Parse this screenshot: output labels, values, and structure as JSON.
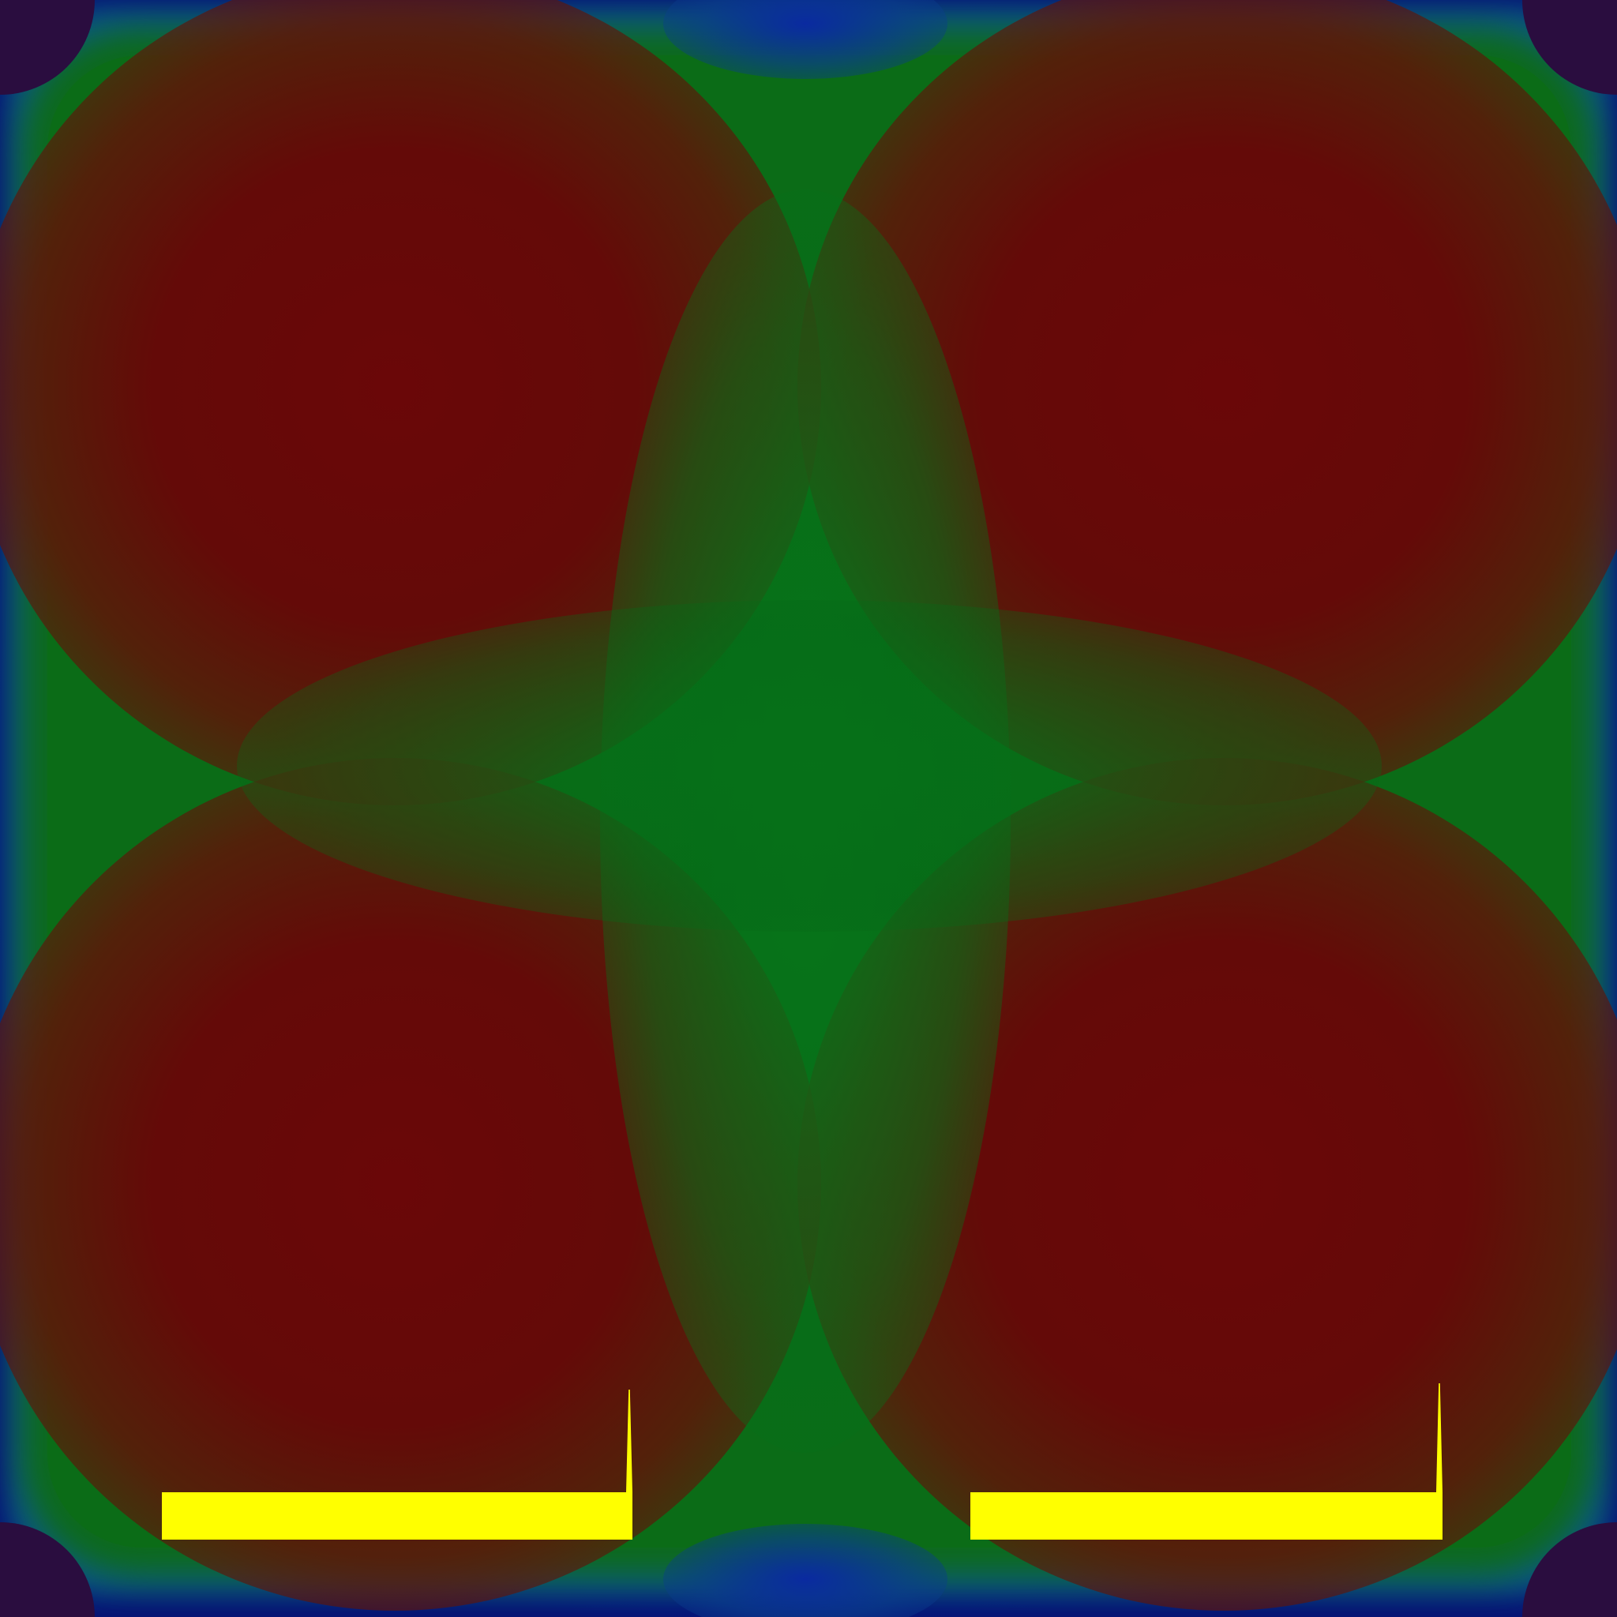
{
  "image": {
    "colors": {
      "background_corner": "#2a0d3f",
      "edge_blue": "#001a99",
      "halo_teal": "#0b5a86",
      "body_green": "#0b6c17",
      "lobe_red": "#640a08",
      "scale_bar_yellow": "#ffff00"
    },
    "regions": [
      "top-left-lobe",
      "top-right-lobe",
      "bottom-left-lobe",
      "bottom-right-lobe",
      "central-green-band"
    ],
    "scale_bars": [
      {
        "name": "left-scale-bar"
      },
      {
        "name": "right-scale-bar"
      }
    ]
  }
}
